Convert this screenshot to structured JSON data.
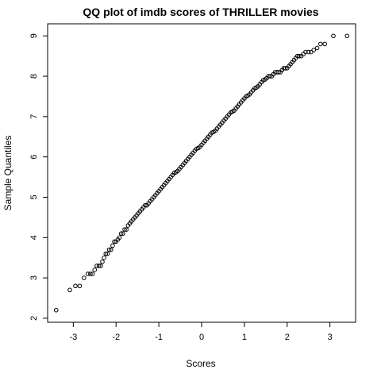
{
  "chart_data": {
    "type": "scatter",
    "title": "QQ plot of imdb scores of THRILLER movies",
    "xlabel": "Scores",
    "ylabel": "Sample Quantiles",
    "xlim": [
      -3.6,
      3.6
    ],
    "ylim": [
      1.9,
      9.3
    ],
    "x_ticks": [
      -3,
      -2,
      -1,
      0,
      1,
      2,
      3
    ],
    "x_tick_labels": [
      "-3",
      "-2",
      "-1",
      "0",
      "1",
      "2",
      "3"
    ],
    "y_ticks": [
      2,
      3,
      4,
      5,
      6,
      7,
      8,
      9
    ],
    "y_tick_labels": [
      "2",
      "3",
      "4",
      "5",
      "6",
      "7",
      "8",
      "9"
    ],
    "grid": false,
    "marker": "open-circle",
    "points": [
      [
        -3.4,
        2.2
      ],
      [
        -3.08,
        2.7
      ],
      [
        -2.95,
        2.8
      ],
      [
        -2.85,
        2.8
      ],
      [
        -2.75,
        3.0
      ],
      [
        -2.66,
        3.1
      ],
      [
        -2.6,
        3.1
      ],
      [
        -2.55,
        3.1
      ],
      [
        -2.5,
        3.2
      ],
      [
        -2.45,
        3.3
      ],
      [
        -2.4,
        3.3
      ],
      [
        -2.36,
        3.3
      ],
      [
        -2.32,
        3.4
      ],
      [
        -2.28,
        3.5
      ],
      [
        -2.24,
        3.6
      ],
      [
        -2.2,
        3.6
      ],
      [
        -2.16,
        3.7
      ],
      [
        -2.12,
        3.7
      ],
      [
        -2.08,
        3.8
      ],
      [
        -2.04,
        3.9
      ],
      [
        -2.0,
        3.9
      ],
      [
        -1.96,
        3.95
      ],
      [
        -1.92,
        4.0
      ],
      [
        -1.88,
        4.1
      ],
      [
        -1.84,
        4.1
      ],
      [
        -1.8,
        4.2
      ],
      [
        -1.76,
        4.2
      ],
      [
        -1.72,
        4.3
      ],
      [
        -1.68,
        4.35
      ],
      [
        -1.64,
        4.4
      ],
      [
        -1.6,
        4.45
      ],
      [
        -1.56,
        4.5
      ],
      [
        -1.52,
        4.55
      ],
      [
        -1.48,
        4.6
      ],
      [
        -1.44,
        4.65
      ],
      [
        -1.4,
        4.7
      ],
      [
        -1.36,
        4.75
      ],
      [
        -1.32,
        4.8
      ],
      [
        -1.28,
        4.8
      ],
      [
        -1.24,
        4.85
      ],
      [
        -1.2,
        4.9
      ],
      [
        -1.16,
        4.95
      ],
      [
        -1.12,
        5.0
      ],
      [
        -1.08,
        5.05
      ],
      [
        -1.04,
        5.1
      ],
      [
        -1.0,
        5.15
      ],
      [
        -0.96,
        5.2
      ],
      [
        -0.92,
        5.25
      ],
      [
        -0.88,
        5.3
      ],
      [
        -0.84,
        5.35
      ],
      [
        -0.8,
        5.4
      ],
      [
        -0.76,
        5.45
      ],
      [
        -0.72,
        5.5
      ],
      [
        -0.68,
        5.55
      ],
      [
        -0.64,
        5.6
      ],
      [
        -0.6,
        5.62
      ],
      [
        -0.56,
        5.65
      ],
      [
        -0.52,
        5.7
      ],
      [
        -0.48,
        5.75
      ],
      [
        -0.44,
        5.8
      ],
      [
        -0.4,
        5.85
      ],
      [
        -0.36,
        5.9
      ],
      [
        -0.32,
        5.95
      ],
      [
        -0.28,
        6.0
      ],
      [
        -0.24,
        6.05
      ],
      [
        -0.2,
        6.1
      ],
      [
        -0.16,
        6.15
      ],
      [
        -0.12,
        6.2
      ],
      [
        -0.08,
        6.22
      ],
      [
        -0.04,
        6.25
      ],
      [
        0.0,
        6.3
      ],
      [
        0.04,
        6.35
      ],
      [
        0.08,
        6.4
      ],
      [
        0.12,
        6.45
      ],
      [
        0.16,
        6.5
      ],
      [
        0.2,
        6.55
      ],
      [
        0.24,
        6.6
      ],
      [
        0.28,
        6.62
      ],
      [
        0.32,
        6.65
      ],
      [
        0.36,
        6.7
      ],
      [
        0.4,
        6.75
      ],
      [
        0.44,
        6.8
      ],
      [
        0.48,
        6.85
      ],
      [
        0.52,
        6.9
      ],
      [
        0.56,
        6.95
      ],
      [
        0.6,
        7.0
      ],
      [
        0.64,
        7.05
      ],
      [
        0.68,
        7.1
      ],
      [
        0.72,
        7.12
      ],
      [
        0.76,
        7.15
      ],
      [
        0.8,
        7.2
      ],
      [
        0.84,
        7.25
      ],
      [
        0.88,
        7.3
      ],
      [
        0.92,
        7.35
      ],
      [
        0.96,
        7.4
      ],
      [
        1.0,
        7.45
      ],
      [
        1.04,
        7.5
      ],
      [
        1.08,
        7.52
      ],
      [
        1.12,
        7.55
      ],
      [
        1.16,
        7.6
      ],
      [
        1.2,
        7.65
      ],
      [
        1.24,
        7.7
      ],
      [
        1.28,
        7.72
      ],
      [
        1.32,
        7.75
      ],
      [
        1.36,
        7.8
      ],
      [
        1.4,
        7.85
      ],
      [
        1.44,
        7.9
      ],
      [
        1.48,
        7.92
      ],
      [
        1.52,
        7.95
      ],
      [
        1.56,
        8.0
      ],
      [
        1.6,
        8.0
      ],
      [
        1.64,
        8.0
      ],
      [
        1.68,
        8.05
      ],
      [
        1.72,
        8.1
      ],
      [
        1.76,
        8.1
      ],
      [
        1.8,
        8.1
      ],
      [
        1.84,
        8.1
      ],
      [
        1.88,
        8.15
      ],
      [
        1.92,
        8.2
      ],
      [
        1.96,
        8.2
      ],
      [
        2.0,
        8.2
      ],
      [
        2.04,
        8.25
      ],
      [
        2.08,
        8.3
      ],
      [
        2.12,
        8.35
      ],
      [
        2.16,
        8.4
      ],
      [
        2.2,
        8.45
      ],
      [
        2.24,
        8.5
      ],
      [
        2.28,
        8.5
      ],
      [
        2.33,
        8.5
      ],
      [
        2.38,
        8.55
      ],
      [
        2.43,
        8.6
      ],
      [
        2.5,
        8.6
      ],
      [
        2.56,
        8.6
      ],
      [
        2.62,
        8.65
      ],
      [
        2.7,
        8.7
      ],
      [
        2.78,
        8.8
      ],
      [
        2.88,
        8.8
      ],
      [
        3.08,
        9.0
      ],
      [
        3.4,
        9.0
      ]
    ]
  }
}
